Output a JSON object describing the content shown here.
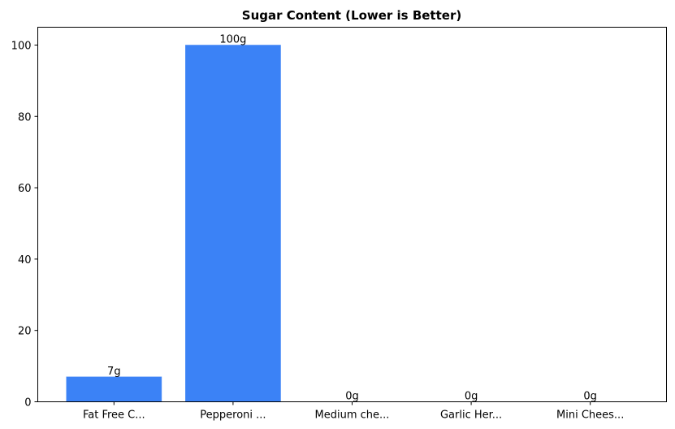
{
  "chart_data": {
    "type": "bar",
    "title": "Sugar Content (Lower is Better)",
    "xlabel": "",
    "ylabel": "",
    "categories": [
      "Fat Free C...",
      "Pepperoni ...",
      "Medium che...",
      "Garlic Her...",
      "Mini Chees..."
    ],
    "values": [
      7,
      100,
      0,
      0,
      0
    ],
    "data_labels": [
      "7g",
      "100g",
      "0g",
      "0g",
      "0g"
    ],
    "ylim": [
      0,
      105
    ],
    "yticks": [
      0,
      20,
      40,
      60,
      80,
      100
    ],
    "grid": false,
    "bar_color": "#3b82f6"
  }
}
